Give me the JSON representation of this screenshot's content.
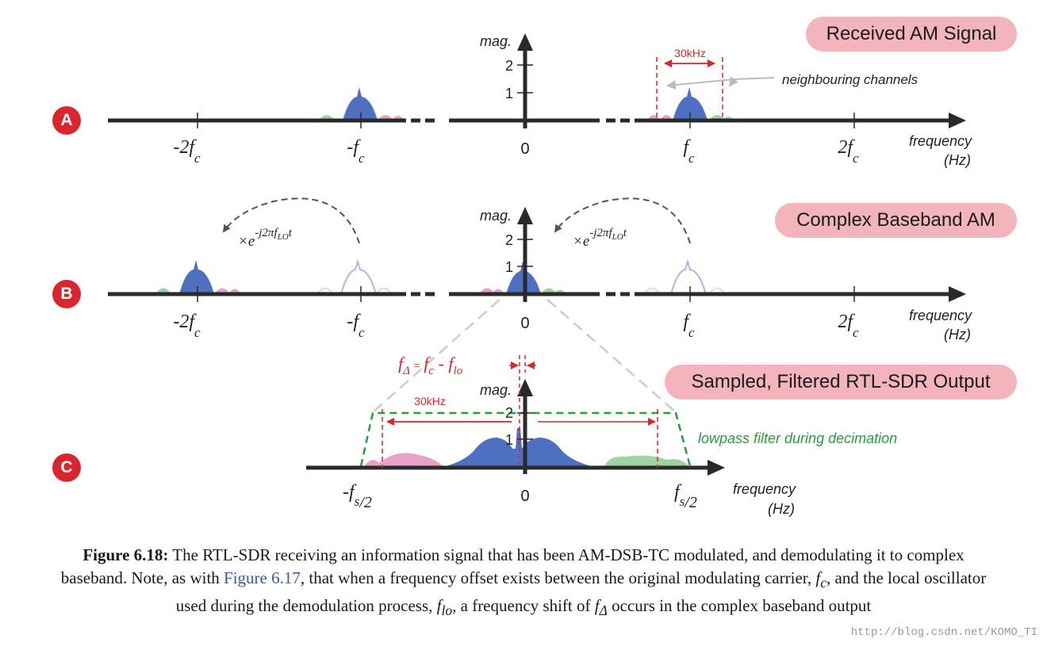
{
  "panels": [
    {
      "badge": "A",
      "title": "Received AM Signal"
    },
    {
      "badge": "B",
      "title": "Complex Baseband AM"
    },
    {
      "badge": "C",
      "title": "Sampled, Filtered RTL-SDR Output"
    }
  ],
  "axis": {
    "mag_label": "mag.",
    "y_tick_1": "1",
    "y_tick_2": "2",
    "freq_label": "frequency",
    "freq_unit": "(Hz)",
    "zero": "0",
    "tick_fc": "f",
    "tick_fc_sub": "c",
    "tick_neg_fc": "-f",
    "tick_2fc": "2f",
    "tick_neg_2fc": "-2f"
  },
  "annotations": {
    "bandwidth": "30kHz",
    "neighbouring": "neighbouring channels",
    "mixer_prefix": "×e",
    "mixer_exp": "-j2πf",
    "mixer_exp_sub": "LO",
    "mixer_exp_tail": "t",
    "delta_f": "f",
    "delta_sub": "Δ",
    "delta_eq": " = ",
    "delta_fc": "f",
    "delta_fc_sub": "c",
    "delta_minus": " - ",
    "delta_flo": "f",
    "delta_flo_sub": "lo",
    "lowpass": "lowpass filter during decimation",
    "neg_fs": "-f",
    "fs": "f",
    "fs_sub": "s",
    "fs_tail": "/2"
  },
  "caption": {
    "label": "Figure 6.18:",
    "part1": " The RTL-SDR receiving an information signal that has been AM-DSB-TC modulated, and demodulating it to complex baseband. Note, as with ",
    "ref": "Figure 6.17",
    "part2": ", that when a frequency offset exists between the original modulating carrier, ",
    "fc_main": "f",
    "fc_sub": "c",
    "part3": ", and the local oscillator used during the demodulation process, ",
    "flo_main": "f",
    "flo_sub": "lo",
    "part4": ", a frequency shift of ",
    "fd_main": "f",
    "fd_sub": "Δ",
    "part5": " occurs in the complex baseband output"
  },
  "watermark": "http://blog.csdn.net/KOMO_TI",
  "colors": {
    "signal": "#4f6fc0",
    "signal_light": "#a9b9e2",
    "neighbour_pink": "#e7a2c8",
    "neighbour_green": "#9fd3a6",
    "bandwidth_red": "#d22a2a",
    "filter_green": "#2c9a45",
    "title_pill": "#f3b4bb",
    "badge": "#d9262e",
    "caption_link": "#3a5a9a"
  }
}
